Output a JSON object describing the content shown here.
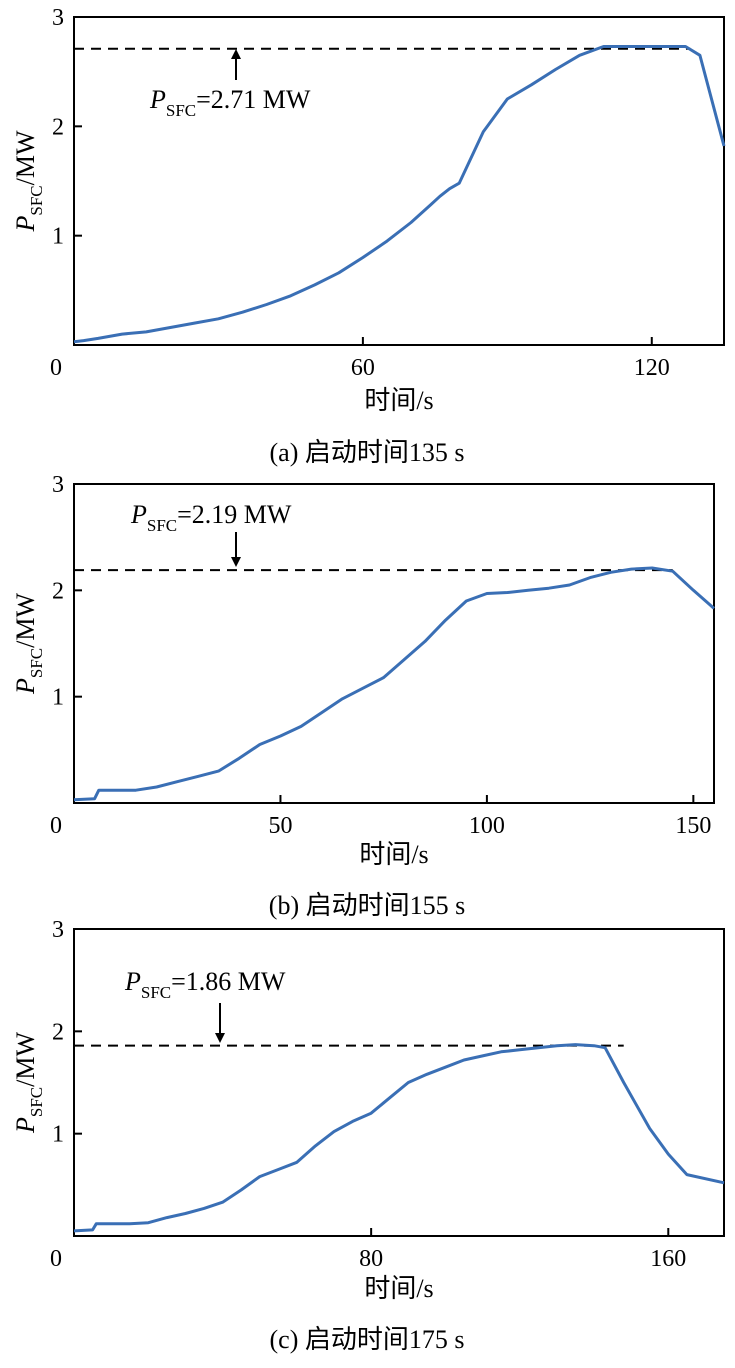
{
  "chart_data": [
    {
      "type": "line",
      "caption": "(a) 启动时间135 s",
      "xlabel": "时间/s",
      "ylabel": {
        "main": "P",
        "sub": "SFC",
        "unit": "/MW"
      },
      "xlim": [
        0,
        135
      ],
      "ylim": [
        0,
        3
      ],
      "xticks": [
        "0",
        "60",
        "120"
      ],
      "yticks": [
        "1",
        "2",
        "3"
      ],
      "annotation": {
        "main": "P",
        "sub": "SFC",
        "rest": "=2.71 MW",
        "arrow": "up"
      },
      "reference_line": {
        "y": 2.71,
        "x_start": 0,
        "x_end": 128,
        "style": "dashed"
      },
      "color": "#3a6fb5",
      "series": [
        {
          "x": [
            0,
            2,
            5,
            10,
            15,
            20,
            25,
            30,
            35,
            40,
            45,
            50,
            55,
            60,
            65,
            70,
            72,
            74,
            76,
            78,
            80,
            85,
            90,
            95,
            100,
            105,
            110,
            115,
            120,
            125,
            127,
            130,
            135
          ],
          "y": [
            0.03,
            0.04,
            0.06,
            0.1,
            0.12,
            0.16,
            0.2,
            0.24,
            0.3,
            0.37,
            0.45,
            0.55,
            0.66,
            0.8,
            0.95,
            1.12,
            1.2,
            1.28,
            1.36,
            1.43,
            1.48,
            1.95,
            2.25,
            2.38,
            2.52,
            2.65,
            2.73,
            2.73,
            2.73,
            2.73,
            2.73,
            2.65,
            1.82
          ]
        }
      ]
    },
    {
      "type": "line",
      "caption": "(b) 启动时间155 s",
      "xlabel": "时间/s",
      "ylabel": {
        "main": "P",
        "sub": "SFC",
        "unit": "/MW"
      },
      "xlim": [
        0,
        155
      ],
      "ylim": [
        0,
        3
      ],
      "xticks": [
        "0",
        "50",
        "100",
        "150"
      ],
      "yticks": [
        "1",
        "2",
        "3"
      ],
      "annotation": {
        "main": "P",
        "sub": "SFC",
        "rest": "=2.19 MW",
        "arrow": "down"
      },
      "reference_line": {
        "y": 2.19,
        "x_start": 0,
        "x_end": 145,
        "style": "dashed"
      },
      "color": "#3a6fb5",
      "series": [
        {
          "x": [
            0,
            5,
            6,
            10,
            15,
            20,
            25,
            30,
            35,
            40,
            45,
            50,
            55,
            60,
            65,
            70,
            75,
            80,
            85,
            90,
            95,
            100,
            105,
            110,
            115,
            120,
            125,
            130,
            135,
            140,
            145,
            150,
            155
          ],
          "y": [
            0.03,
            0.04,
            0.12,
            0.12,
            0.12,
            0.15,
            0.2,
            0.25,
            0.3,
            0.42,
            0.55,
            0.63,
            0.72,
            0.85,
            0.98,
            1.08,
            1.18,
            1.35,
            1.52,
            1.72,
            1.9,
            1.97,
            1.98,
            2.0,
            2.02,
            2.05,
            2.12,
            2.17,
            2.2,
            2.21,
            2.18,
            2.0,
            1.83
          ]
        }
      ]
    },
    {
      "type": "line",
      "caption": "(c) 启动时间175 s",
      "xlabel": "时间/s",
      "ylabel": {
        "main": "P",
        "sub": "SFC",
        "unit": "/MW"
      },
      "xlim": [
        0,
        175
      ],
      "ylim": [
        0,
        3
      ],
      "xticks": [
        "0",
        "80",
        "160"
      ],
      "yticks": [
        "1",
        "2",
        "3"
      ],
      "annotation": {
        "main": "P",
        "sub": "SFC",
        "rest": "=1.86 MW",
        "arrow": "down"
      },
      "reference_line": {
        "y": 1.86,
        "x_start": 0,
        "x_end": 148,
        "style": "dashed"
      },
      "color": "#3a6fb5",
      "series": [
        {
          "x": [
            0,
            5,
            6,
            10,
            15,
            20,
            25,
            30,
            35,
            40,
            45,
            50,
            55,
            60,
            65,
            70,
            75,
            80,
            85,
            90,
            95,
            100,
            105,
            110,
            115,
            120,
            125,
            130,
            135,
            140,
            143,
            148,
            155,
            160,
            165,
            175
          ],
          "y": [
            0.05,
            0.06,
            0.12,
            0.12,
            0.12,
            0.13,
            0.18,
            0.22,
            0.27,
            0.33,
            0.45,
            0.58,
            0.65,
            0.72,
            0.88,
            1.02,
            1.12,
            1.2,
            1.35,
            1.5,
            1.58,
            1.65,
            1.72,
            1.76,
            1.8,
            1.82,
            1.84,
            1.86,
            1.87,
            1.86,
            1.84,
            1.5,
            1.05,
            0.8,
            0.6,
            0.52
          ]
        }
      ]
    }
  ]
}
